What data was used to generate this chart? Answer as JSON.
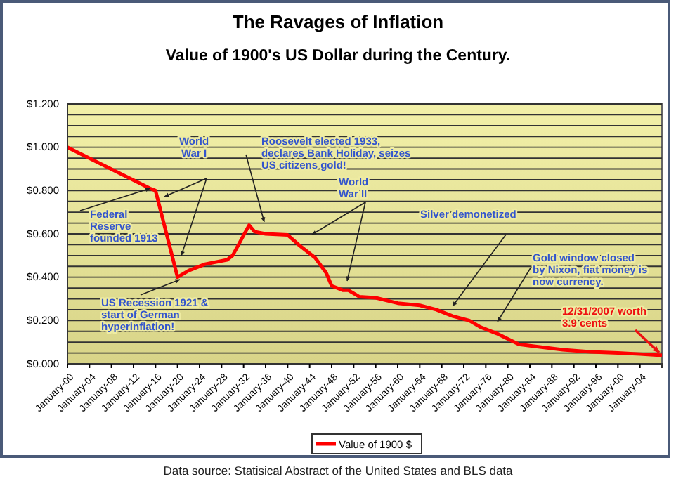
{
  "chart_data": {
    "type": "line",
    "title": "The Ravages of Inflation",
    "subtitle": "Value of 1900's  US Dollar during the Century.",
    "x": [
      "1900-01",
      "1915-01",
      "1916-01",
      "1920-01",
      "1922-01",
      "1925-01",
      "1929-01",
      "1930-01",
      "1933-01",
      "1934-01",
      "1936-01",
      "1940-01",
      "1942-01",
      "1945-01",
      "1947-01",
      "1948-01",
      "1950-01",
      "1951-01",
      "1953-01",
      "1956-01",
      "1960-01",
      "1964-01",
      "1967-01",
      "1970-01",
      "1973-01",
      "1975-01",
      "1978-01",
      "1980-01",
      "1982-01",
      "1985-01",
      "1990-01",
      "1995-01",
      "2000-01",
      "2004-01",
      "2007-12-31"
    ],
    "series": [
      {
        "name": "Value of 1900 $",
        "color": "#ff0000",
        "values": [
          1.0,
          0.81,
          0.8,
          0.4,
          0.43,
          0.46,
          0.48,
          0.5,
          0.64,
          0.61,
          0.6,
          0.595,
          0.55,
          0.49,
          0.42,
          0.36,
          0.34,
          0.34,
          0.31,
          0.305,
          0.28,
          0.27,
          0.25,
          0.22,
          0.2,
          0.17,
          0.14,
          0.115,
          0.09,
          0.08,
          0.065,
          0.055,
          0.05,
          0.045,
          0.039
        ]
      }
    ],
    "xlim": [
      "1900-01",
      "2008-01"
    ],
    "xticks": [
      {
        "value": "1900-01",
        "label": "January-00"
      },
      {
        "value": "1904-01",
        "label": "January-04"
      },
      {
        "value": "1908-01",
        "label": "January-08"
      },
      {
        "value": "1912-01",
        "label": "January-12"
      },
      {
        "value": "1916-01",
        "label": "January-16"
      },
      {
        "value": "1920-01",
        "label": "January-20"
      },
      {
        "value": "1924-01",
        "label": "January-24"
      },
      {
        "value": "1928-01",
        "label": "January-28"
      },
      {
        "value": "1932-01",
        "label": "January-32"
      },
      {
        "value": "1936-01",
        "label": "January-36"
      },
      {
        "value": "1940-01",
        "label": "January-40"
      },
      {
        "value": "1944-01",
        "label": "January-44"
      },
      {
        "value": "1948-01",
        "label": "January-48"
      },
      {
        "value": "1952-01",
        "label": "January-52"
      },
      {
        "value": "1956-01",
        "label": "January-56"
      },
      {
        "value": "1960-01",
        "label": "January-60"
      },
      {
        "value": "1964-01",
        "label": "January-64"
      },
      {
        "value": "1968-01",
        "label": "January-68"
      },
      {
        "value": "1972-01",
        "label": "January-72"
      },
      {
        "value": "1976-01",
        "label": "January-76"
      },
      {
        "value": "1980-01",
        "label": "January-80"
      },
      {
        "value": "1984-01",
        "label": "January-84"
      },
      {
        "value": "1988-01",
        "label": "January-88"
      },
      {
        "value": "1992-01",
        "label": "January-92"
      },
      {
        "value": "1996-01",
        "label": "January-96"
      },
      {
        "value": "2000-01",
        "label": "January-00"
      },
      {
        "value": "2004-01",
        "label": "January-04"
      }
    ],
    "ylim": [
      0,
      1.2
    ],
    "yticks": [
      {
        "value": 0,
        "label": "$0.000"
      },
      {
        "value": 0.05,
        "label": null
      },
      {
        "value": 0.1,
        "label": null
      },
      {
        "value": 0.15,
        "label": null
      },
      {
        "value": 0.2,
        "label": "$0.200"
      },
      {
        "value": 0.25,
        "label": null
      },
      {
        "value": 0.3,
        "label": null
      },
      {
        "value": 0.35,
        "label": null
      },
      {
        "value": 0.4,
        "label": "$0.400"
      },
      {
        "value": 0.45,
        "label": null
      },
      {
        "value": 0.5,
        "label": null
      },
      {
        "value": 0.55,
        "label": null
      },
      {
        "value": 0.6,
        "label": "$0.600"
      },
      {
        "value": 0.65,
        "label": null
      },
      {
        "value": 0.7,
        "label": null
      },
      {
        "value": 0.75,
        "label": null
      },
      {
        "value": 0.8,
        "label": "$0.800"
      },
      {
        "value": 0.85,
        "label": null
      },
      {
        "value": 0.9,
        "label": null
      },
      {
        "value": 0.95,
        "label": null
      },
      {
        "value": 1.0,
        "label": "$1.000"
      },
      {
        "value": 1.05,
        "label": null
      },
      {
        "value": 1.1,
        "label": null
      },
      {
        "value": 1.15,
        "label": null
      },
      {
        "value": 1.2,
        "label": "$1.200"
      }
    ],
    "grid": "y",
    "legend": "bottom",
    "marker": "none",
    "line_style": "solid",
    "annotations": [
      {
        "text": "Federal\nReserve\nfounded 1913",
        "x": "1915-01",
        "y": 0.81
      },
      "World\nWar I",
      "Roosevelt elected 1933,\ndeclares Bank Holiday, seizes\nUS citizens gold!",
      "World\nWar II",
      "Silver demonetized",
      "Gold window closed\nby Nixon, fiat money is\nnow currency.",
      "12/31/2007 worth\n3.9 cents",
      "US Recession 1921 &\nstart of German\nhyperinflation!",
      "Data source: Statisical Abstract of the United States and BLS data"
    ]
  }
}
